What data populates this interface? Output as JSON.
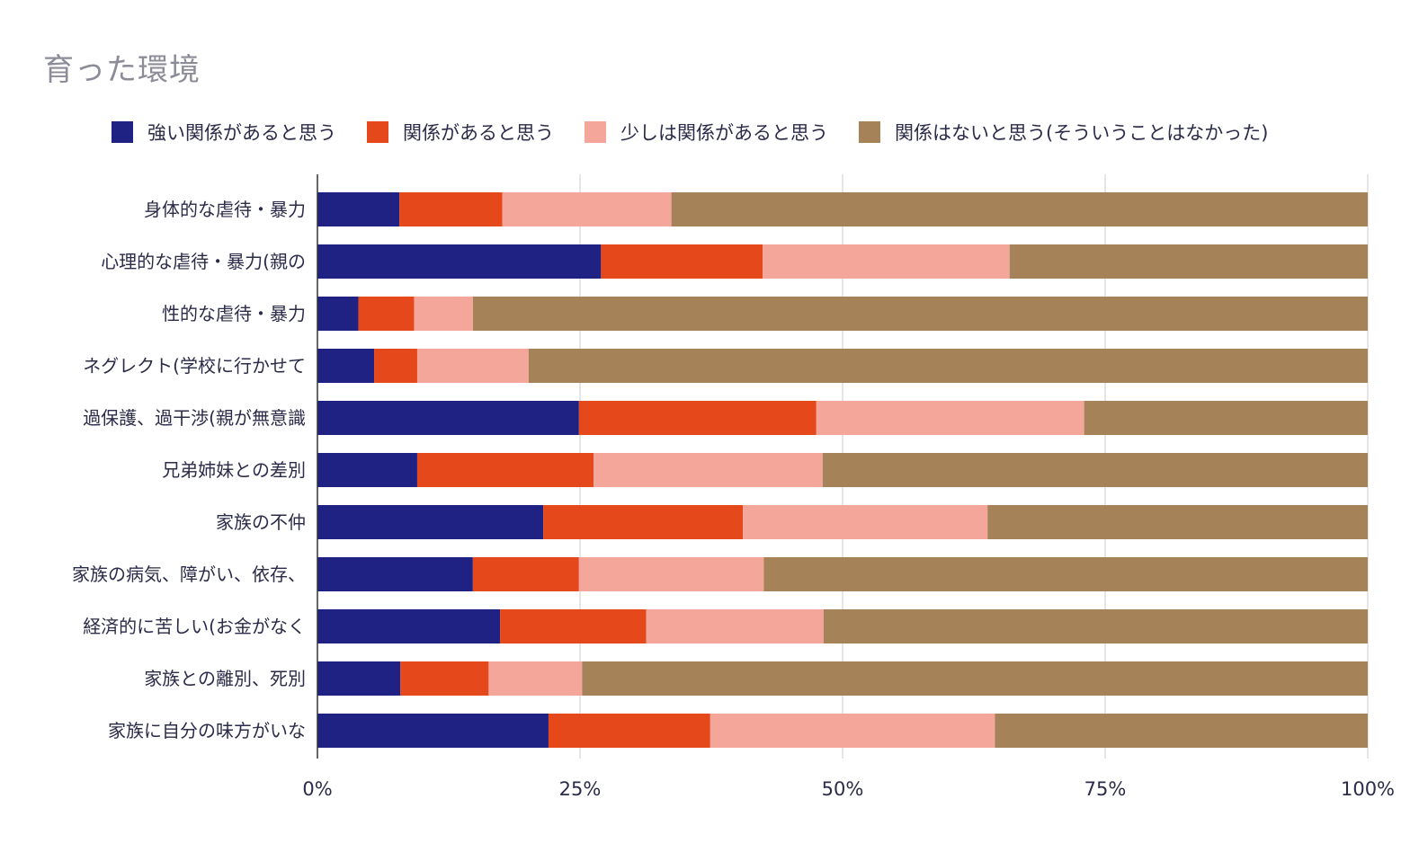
{
  "chart_data": {
    "type": "bar",
    "orientation": "horizontal",
    "stacked": "percent",
    "title": "育った環境",
    "categories": [
      "身体的な虐待・暴力",
      "心理的な虐待・暴力(親の",
      "性的な虐待・暴力",
      "ネグレクト(学校に行かせて",
      "過保護、過干渉(親が無意識",
      "兄弟姉妹との差別",
      "家族の不仲",
      "家族の病気、障がい、依存、",
      "経済的に苦しい(お金がなく",
      "家族との離別、死別",
      "家族に自分の味方がいな"
    ],
    "series": [
      {
        "name": "強い関係があると思う",
        "color": "#1f2283",
        "values": [
          7.8,
          27.0,
          3.9,
          5.4,
          24.9,
          9.5,
          21.5,
          14.8,
          17.4,
          7.9,
          22.0
        ]
      },
      {
        "name": "関係があると思う",
        "color": "#e4481b",
        "values": [
          9.8,
          15.4,
          5.3,
          4.1,
          22.6,
          16.8,
          19.0,
          10.1,
          13.9,
          8.4,
          15.4
        ]
      },
      {
        "name": "少しは関係があると思う",
        "color": "#f4a69b",
        "values": [
          16.1,
          23.5,
          5.6,
          10.6,
          25.5,
          21.8,
          23.3,
          17.6,
          16.9,
          8.9,
          27.1
        ]
      },
      {
        "name": "関係はないと思う(そういうことはなかった)",
        "color": "#a58257",
        "values": [
          66.3,
          34.1,
          85.2,
          79.9,
          27.0,
          51.9,
          36.2,
          57.5,
          51.8,
          74.8,
          35.5
        ]
      }
    ],
    "xlim": [
      0,
      100
    ],
    "xticks": [
      "0%",
      "25%",
      "50%",
      "75%",
      "100%"
    ],
    "grid": true,
    "legend_position": "top"
  }
}
